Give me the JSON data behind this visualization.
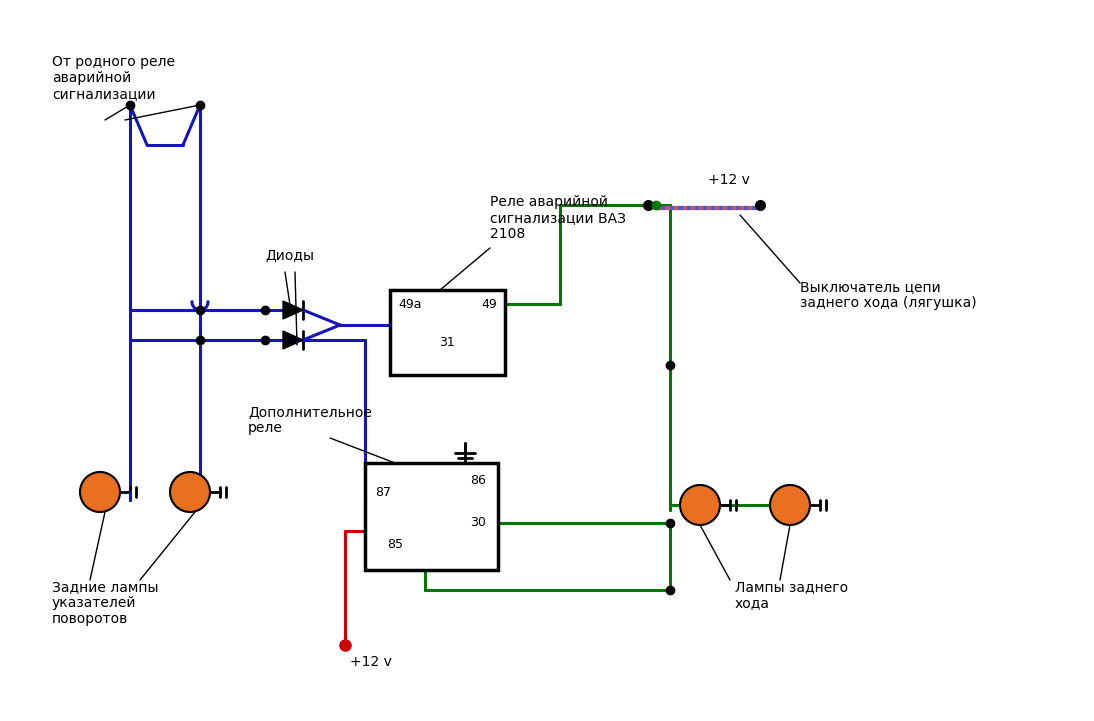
{
  "bg": "#ffffff",
  "blue": "#1515bb",
  "green": "#007700",
  "red": "#cc0000",
  "black": "#000000",
  "orange": "#e87020",
  "figsize": [
    10.94,
    7.21
  ],
  "dpi": 100,
  "label_from_relay": "От родного реле\nаварийной\nсигнализации",
  "label_diodes": "Диоды",
  "label_relay_vaz": "Реле аварийной\nсигнализации ВАЗ\n2108",
  "label_add_relay": "Дополнительное\nреле",
  "label_rear_turn": "Задние лампы\nуказателей\nповоротов",
  "label_switch": "Выключатель цепи\nзаднего хода (лягушка)",
  "label_back_lamps": "Лампы заднего\nхода",
  "label_12v_bottom": "+12 v",
  "label_12v_top": "+12 v"
}
